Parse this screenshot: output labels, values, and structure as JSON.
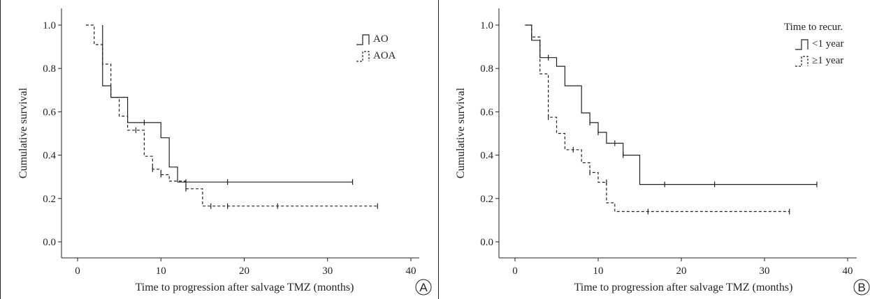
{
  "chart_data": [
    {
      "type": "line",
      "panel_label": "A",
      "xlabel": "Time to progression after salvage TMZ (months)",
      "ylabel": "Cumulative survival",
      "xlim": [
        0,
        40
      ],
      "ylim": [
        0,
        1
      ],
      "x_ticks": [
        "0",
        "10",
        "20",
        "30",
        "40"
      ],
      "y_ticks": [
        "0.0",
        "0.2",
        "0.4",
        "0.6",
        "0.8",
        "1.0"
      ],
      "grid": false,
      "legend_position": "top-right",
      "legend_title": "",
      "series": [
        {
          "name": "AO",
          "style": "solid",
          "steps": [
            [
              0,
              1.0
            ],
            [
              3,
              0.72
            ],
            [
              4,
              0.667
            ],
            [
              6,
              0.55
            ],
            [
              10,
              0.48
            ],
            [
              11,
              0.345
            ],
            [
              12,
              0.276
            ],
            [
              33,
              0.276
            ]
          ],
          "censored": [
            [
              8,
              0.55
            ],
            [
              13,
              0.276
            ],
            [
              18,
              0.276
            ],
            [
              33,
              0.276
            ]
          ],
          "start_x": 3
        },
        {
          "name": "AOA",
          "style": "dashed",
          "steps": [
            [
              1,
              1.0
            ],
            [
              2,
              0.91
            ],
            [
              3,
              0.82
            ],
            [
              4,
              0.667
            ],
            [
              5,
              0.58
            ],
            [
              6,
              0.515
            ],
            [
              8,
              0.395
            ],
            [
              9,
              0.335
            ],
            [
              10,
              0.31
            ],
            [
              11,
              0.28
            ],
            [
              13,
              0.245
            ],
            [
              15,
              0.165
            ],
            [
              36,
              0.165
            ]
          ],
          "censored": [
            [
              7,
              0.515
            ],
            [
              9,
              0.335
            ],
            [
              10,
              0.31
            ],
            [
              13,
              0.245
            ],
            [
              16,
              0.165
            ],
            [
              18,
              0.165
            ],
            [
              24,
              0.165
            ],
            [
              36,
              0.165
            ]
          ],
          "start_x": 1
        }
      ]
    },
    {
      "type": "line",
      "panel_label": "B",
      "xlabel": "Time to progression after salvage TMZ (months)",
      "ylabel": "Cumulative survival",
      "xlim": [
        0,
        40
      ],
      "ylim": [
        0,
        1
      ],
      "x_ticks": [
        "0",
        "10",
        "20",
        "30",
        "40"
      ],
      "y_ticks": [
        "0.0",
        "0.2",
        "0.4",
        "0.6",
        "0.8",
        "1.0"
      ],
      "grid": false,
      "legend_position": "top-right",
      "legend_title": "Time to recur.",
      "series": [
        {
          "name": "<1 year",
          "style": "solid",
          "steps": [
            [
              1.3,
              1.0
            ],
            [
              2,
              0.93
            ],
            [
              3,
              0.85
            ],
            [
              5,
              0.81
            ],
            [
              6,
              0.72
            ],
            [
              8,
              0.595
            ],
            [
              9,
              0.55
            ],
            [
              10,
              0.505
            ],
            [
              11,
              0.455
            ],
            [
              13,
              0.4
            ],
            [
              15,
              0.265
            ],
            [
              36.3,
              0.265
            ]
          ],
          "censored": [
            [
              4,
              0.85
            ],
            [
              9,
              0.55
            ],
            [
              10,
              0.505
            ],
            [
              12,
              0.455
            ],
            [
              13,
              0.4
            ],
            [
              18,
              0.265
            ],
            [
              24,
              0.265
            ],
            [
              36.3,
              0.265
            ]
          ],
          "start_x": 1.3
        },
        {
          "name": "≥1 year",
          "style": "dashed",
          "steps": [
            [
              1.2,
              1.0
            ],
            [
              2,
              0.945
            ],
            [
              3,
              0.775
            ],
            [
              4,
              0.575
            ],
            [
              5,
              0.5
            ],
            [
              6,
              0.425
            ],
            [
              8,
              0.365
            ],
            [
              9,
              0.32
            ],
            [
              10,
              0.275
            ],
            [
              11,
              0.18
            ],
            [
              12,
              0.14
            ],
            [
              33,
              0.14
            ]
          ],
          "censored": [
            [
              2,
              0.945
            ],
            [
              4,
              0.575
            ],
            [
              7,
              0.425
            ],
            [
              9,
              0.32
            ],
            [
              11,
              0.275
            ],
            [
              16,
              0.14
            ],
            [
              33,
              0.14
            ]
          ],
          "start_x": 1.2
        }
      ]
    }
  ]
}
